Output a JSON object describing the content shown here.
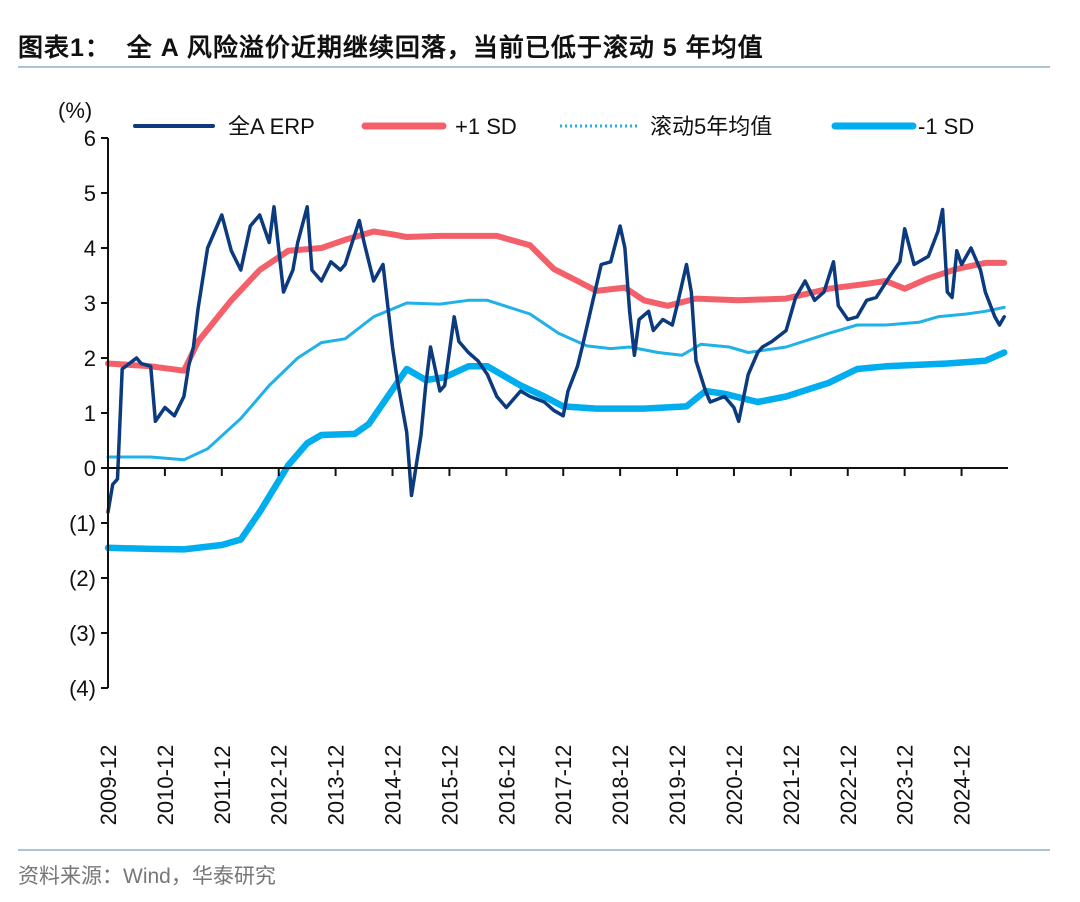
{
  "title": "图表1：  全 A 风险溢价近期继续回落，当前已低于滚动 5 年均值",
  "source": "资料来源：Wind，华泰研究",
  "chart_data": {
    "type": "line",
    "title": "",
    "xlabel": "",
    "ylabel": "(%)",
    "ylim": [
      -4,
      6
    ],
    "yticks": [
      6,
      5,
      4,
      3,
      2,
      1,
      0,
      -1,
      -2,
      -3,
      -4
    ],
    "ytick_labels": [
      "6",
      "5",
      "4",
      "3",
      "2",
      "1",
      "0",
      "(1)",
      "(2)",
      "(3)",
      "(4)"
    ],
    "xticks": [
      "2009-12",
      "2010-12",
      "2011-12",
      "2012-12",
      "2013-12",
      "2014-12",
      "2015-12",
      "2016-12",
      "2017-12",
      "2018-12",
      "2019-12",
      "2020-12",
      "2021-12",
      "2022-12",
      "2023-12",
      "2024-12"
    ],
    "grid": false,
    "legend_position": "top",
    "series": [
      {
        "name": "全A ERP",
        "color": "#0b3a7e",
        "style": "solid",
        "x": [
          "2009-12",
          "2010-01",
          "2010-02",
          "2010-03",
          "2010-06",
          "2010-07",
          "2010-09",
          "2010-10",
          "2010-12",
          "2011-02",
          "2011-04",
          "2011-05",
          "2011-06",
          "2011-07",
          "2011-09",
          "2011-12",
          "2012-02",
          "2012-04",
          "2012-06",
          "2012-08",
          "2012-10",
          "2012-11",
          "2013-01",
          "2013-03",
          "2013-04",
          "2013-06",
          "2013-07",
          "2013-09",
          "2013-11",
          "2014-01",
          "2014-02",
          "2014-05",
          "2014-06",
          "2014-08",
          "2014-10",
          "2014-12",
          "2015-01",
          "2015-03",
          "2015-04",
          "2015-06",
          "2015-07",
          "2015-08",
          "2015-10",
          "2015-11",
          "2016-01",
          "2016-02",
          "2016-04",
          "2016-06",
          "2016-08",
          "2016-10",
          "2016-12",
          "2017-03",
          "2017-05",
          "2017-08",
          "2017-10",
          "2017-12",
          "2018-01",
          "2018-03",
          "2018-04",
          "2018-06",
          "2018-08",
          "2018-10",
          "2018-12",
          "2019-01",
          "2019-02",
          "2019-03",
          "2019-04",
          "2019-06",
          "2019-07",
          "2019-09",
          "2019-11",
          "2019-12",
          "2020-02",
          "2020-03",
          "2020-04",
          "2020-06",
          "2020-07",
          "2020-10",
          "2020-12",
          "2021-01",
          "2021-03",
          "2021-05",
          "2021-06",
          "2021-08",
          "2021-11",
          "2022-01",
          "2022-03",
          "2022-05",
          "2022-07",
          "2022-09",
          "2022-10",
          "2022-12",
          "2023-02",
          "2023-04",
          "2023-06",
          "2023-09",
          "2023-11",
          "2023-12",
          "2024-02",
          "2024-05",
          "2024-07",
          "2024-08",
          "2024-09",
          "2024-10",
          "2024-11",
          "2024-12",
          "2025-02",
          "2025-04",
          "2025-05",
          "2025-07",
          "2025-08",
          "2025-09"
        ],
        "values": [
          -0.8,
          -0.3,
          -0.2,
          1.8,
          2.0,
          1.9,
          1.85,
          0.85,
          1.1,
          0.95,
          1.3,
          1.85,
          2.2,
          2.9,
          4.0,
          4.6,
          3.95,
          3.6,
          4.4,
          4.6,
          4.1,
          4.75,
          3.2,
          3.6,
          4.1,
          4.75,
          3.6,
          3.4,
          3.75,
          3.6,
          3.7,
          4.5,
          4.1,
          3.4,
          3.7,
          2.2,
          1.6,
          0.65,
          -0.5,
          0.6,
          1.5,
          2.2,
          1.4,
          1.5,
          2.75,
          2.3,
          2.1,
          1.95,
          1.7,
          1.3,
          1.1,
          1.4,
          1.3,
          1.2,
          1.05,
          0.95,
          1.4,
          1.85,
          2.2,
          2.95,
          3.7,
          3.75,
          4.4,
          4.0,
          2.85,
          2.05,
          2.7,
          2.85,
          2.5,
          2.7,
          2.6,
          2.95,
          3.7,
          3.2,
          1.95,
          1.4,
          1.2,
          1.3,
          1.1,
          0.85,
          1.7,
          2.1,
          2.2,
          2.3,
          2.5,
          3.1,
          3.4,
          3.05,
          3.2,
          3.75,
          2.95,
          2.7,
          2.75,
          3.05,
          3.1,
          3.5,
          3.75,
          4.35,
          3.7,
          3.85,
          4.3,
          4.7,
          3.2,
          3.1,
          3.95,
          3.7,
          4.0,
          3.6,
          3.2,
          2.75,
          2.6,
          2.75
        ]
      },
      {
        "name": "+1 SD",
        "color": "#f4606a",
        "style": "thick",
        "x": [
          "2009-12",
          "2010-09",
          "2011-04",
          "2011-07",
          "2012-02",
          "2012-08",
          "2013-02",
          "2013-09",
          "2014-02",
          "2014-08",
          "2014-12",
          "2015-03",
          "2015-10",
          "2016-10",
          "2017-05",
          "2017-10",
          "2018-03",
          "2018-07",
          "2019-01",
          "2019-05",
          "2019-10",
          "2020-04",
          "2021-01",
          "2021-11",
          "2022-08",
          "2023-04",
          "2023-08",
          "2023-12",
          "2024-05",
          "2024-11",
          "2025-05",
          "2025-09"
        ],
        "values": [
          1.9,
          1.85,
          1.77,
          2.3,
          3.05,
          3.6,
          3.95,
          4.0,
          4.15,
          4.3,
          4.25,
          4.2,
          4.22,
          4.22,
          4.05,
          3.62,
          3.4,
          3.22,
          3.28,
          3.05,
          2.95,
          3.08,
          3.05,
          3.08,
          3.26,
          3.35,
          3.4,
          3.26,
          3.45,
          3.62,
          3.73,
          3.73
        ]
      },
      {
        "name": "滚动5年均值",
        "color": "#1fb1e8",
        "style": "thin",
        "x": [
          "2009-12",
          "2010-09",
          "2011-04",
          "2011-09",
          "2012-04",
          "2012-10",
          "2013-04",
          "2013-09",
          "2014-02",
          "2014-08",
          "2015-03",
          "2015-10",
          "2016-04",
          "2016-08",
          "2017-05",
          "2017-11",
          "2018-05",
          "2018-10",
          "2019-02",
          "2019-08",
          "2020-01",
          "2020-05",
          "2020-11",
          "2021-03",
          "2021-11",
          "2022-08",
          "2023-02",
          "2023-08",
          "2024-03",
          "2024-07",
          "2025-01",
          "2025-05",
          "2025-09"
        ],
        "values": [
          0.2,
          0.2,
          0.15,
          0.35,
          0.9,
          1.5,
          2.0,
          2.28,
          2.35,
          2.75,
          3.0,
          2.98,
          3.05,
          3.05,
          2.8,
          2.45,
          2.22,
          2.17,
          2.2,
          2.1,
          2.05,
          2.25,
          2.2,
          2.1,
          2.2,
          2.45,
          2.6,
          2.6,
          2.65,
          2.75,
          2.8,
          2.85,
          2.92
        ]
      },
      {
        "name": "-1 SD",
        "color": "#00aeef",
        "style": "thickest",
        "x": [
          "2009-12",
          "2010-09",
          "2011-04",
          "2011-12",
          "2012-04",
          "2012-08",
          "2013-02",
          "2013-06",
          "2013-09",
          "2014-04",
          "2014-07",
          "2014-11",
          "2015-03",
          "2015-07",
          "2015-11",
          "2016-04",
          "2016-08",
          "2017-03",
          "2017-08",
          "2017-12",
          "2018-07",
          "2019-05",
          "2020-02",
          "2020-06",
          "2020-10",
          "2021-05",
          "2021-11",
          "2022-08",
          "2023-02",
          "2023-08",
          "2024-09",
          "2025-05",
          "2025-09"
        ],
        "values": [
          -1.45,
          -1.47,
          -1.48,
          -1.4,
          -1.3,
          -0.8,
          0.05,
          0.45,
          0.6,
          0.62,
          0.8,
          1.3,
          1.8,
          1.6,
          1.65,
          1.85,
          1.85,
          1.5,
          1.3,
          1.12,
          1.08,
          1.08,
          1.12,
          1.4,
          1.35,
          1.2,
          1.3,
          1.55,
          1.8,
          1.85,
          1.9,
          1.95,
          2.1
        ]
      }
    ]
  }
}
